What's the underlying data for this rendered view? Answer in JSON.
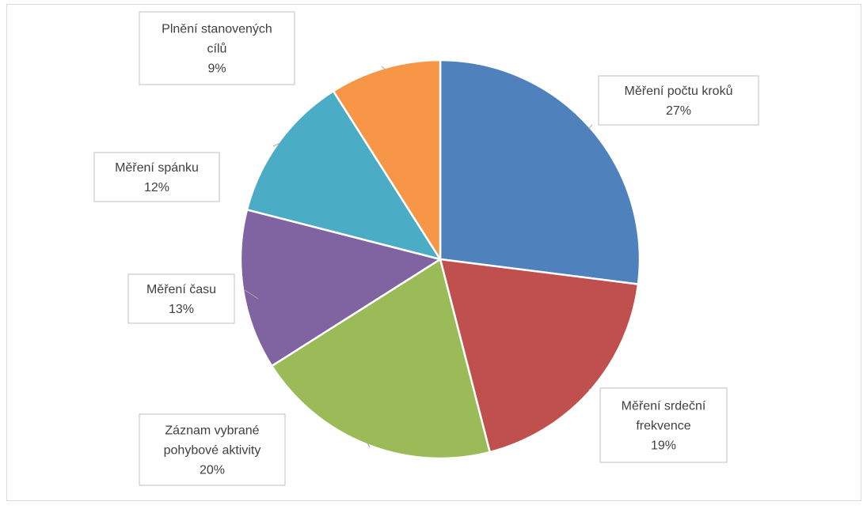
{
  "chart_data": {
    "type": "pie",
    "title": "",
    "slices": [
      {
        "name": "Měření počtu kroků",
        "value": 27,
        "label_lines": [
          "Měření počtu kroků"
        ],
        "percent_text": "27%",
        "color": "#4F81BD"
      },
      {
        "name": "Měření srdeční frekvence",
        "value": 19,
        "label_lines": [
          "Měření srdeční",
          "frekvence"
        ],
        "percent_text": "19%",
        "color": "#C0504D"
      },
      {
        "name": "Záznam vybrané pohybové aktivity",
        "value": 20,
        "label_lines": [
          "Záznam vybrané",
          "pohybové aktivity"
        ],
        "percent_text": "20%",
        "color": "#9BBB59"
      },
      {
        "name": "Měření času",
        "value": 13,
        "label_lines": [
          "Měření času"
        ],
        "percent_text": "13%",
        "color": "#8064A2"
      },
      {
        "name": "Měření spánku",
        "value": 12,
        "label_lines": [
          "Měření spánku"
        ],
        "percent_text": "12%",
        "color": "#4BACC6"
      },
      {
        "name": "Plnění stanovených cílů",
        "value": 9,
        "label_lines": [
          "Plnění stanovených",
          "cílů"
        ],
        "percent_text": "9%",
        "color": "#F79646"
      }
    ]
  }
}
